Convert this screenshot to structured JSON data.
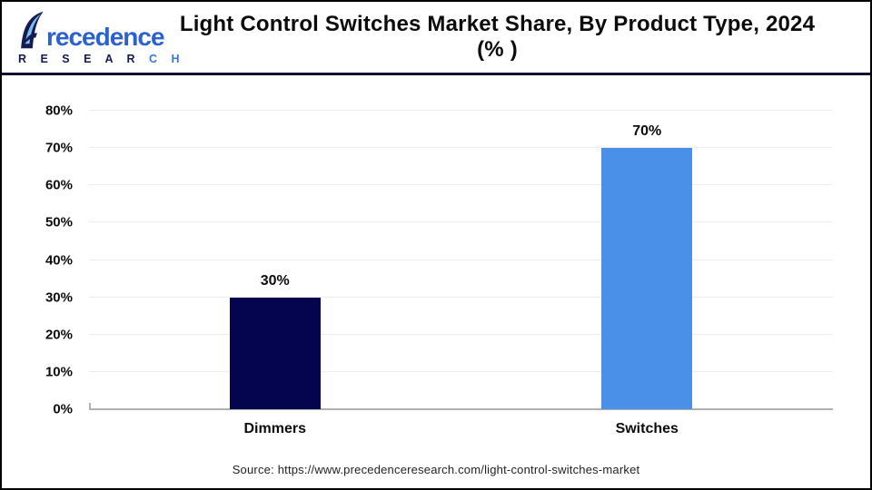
{
  "header": {
    "logo": {
      "brand_rest": "recedence",
      "sub_dark": "R E S E A R",
      "sub_light": " C H"
    },
    "title": "Light Control Switches Market Share, By Product Type, 2024 (% )"
  },
  "chart_data": {
    "type": "bar",
    "title": "Light Control Switches Market Share, By Product Type, 2024 (%)",
    "categories": [
      "Dimmers",
      "Switches"
    ],
    "values": [
      30,
      70
    ],
    "value_labels": [
      "30%",
      "70%"
    ],
    "bar_colors": [
      "#05054f",
      "#4a90e8"
    ],
    "xlabel": "",
    "ylabel": "",
    "ylim": [
      0,
      80
    ],
    "yticks": [
      0,
      10,
      20,
      30,
      40,
      50,
      60,
      70,
      80
    ],
    "ytick_labels": [
      "0%",
      "10%",
      "20%",
      "30%",
      "40%",
      "50%",
      "60%",
      "70%",
      "80%"
    ],
    "grid": "horizontal",
    "legend": "none"
  },
  "colors": {
    "divider": "#0d0d33",
    "gridline": "#ededed",
    "axis": "#b0b0b0",
    "logo_dark": "#151a52",
    "logo_blue": "#2b62cf",
    "logo_light_blue": "#7cc0ea"
  },
  "footer": {
    "source": "Source: https://www.precedenceresearch.com/light-control-switches-market"
  }
}
